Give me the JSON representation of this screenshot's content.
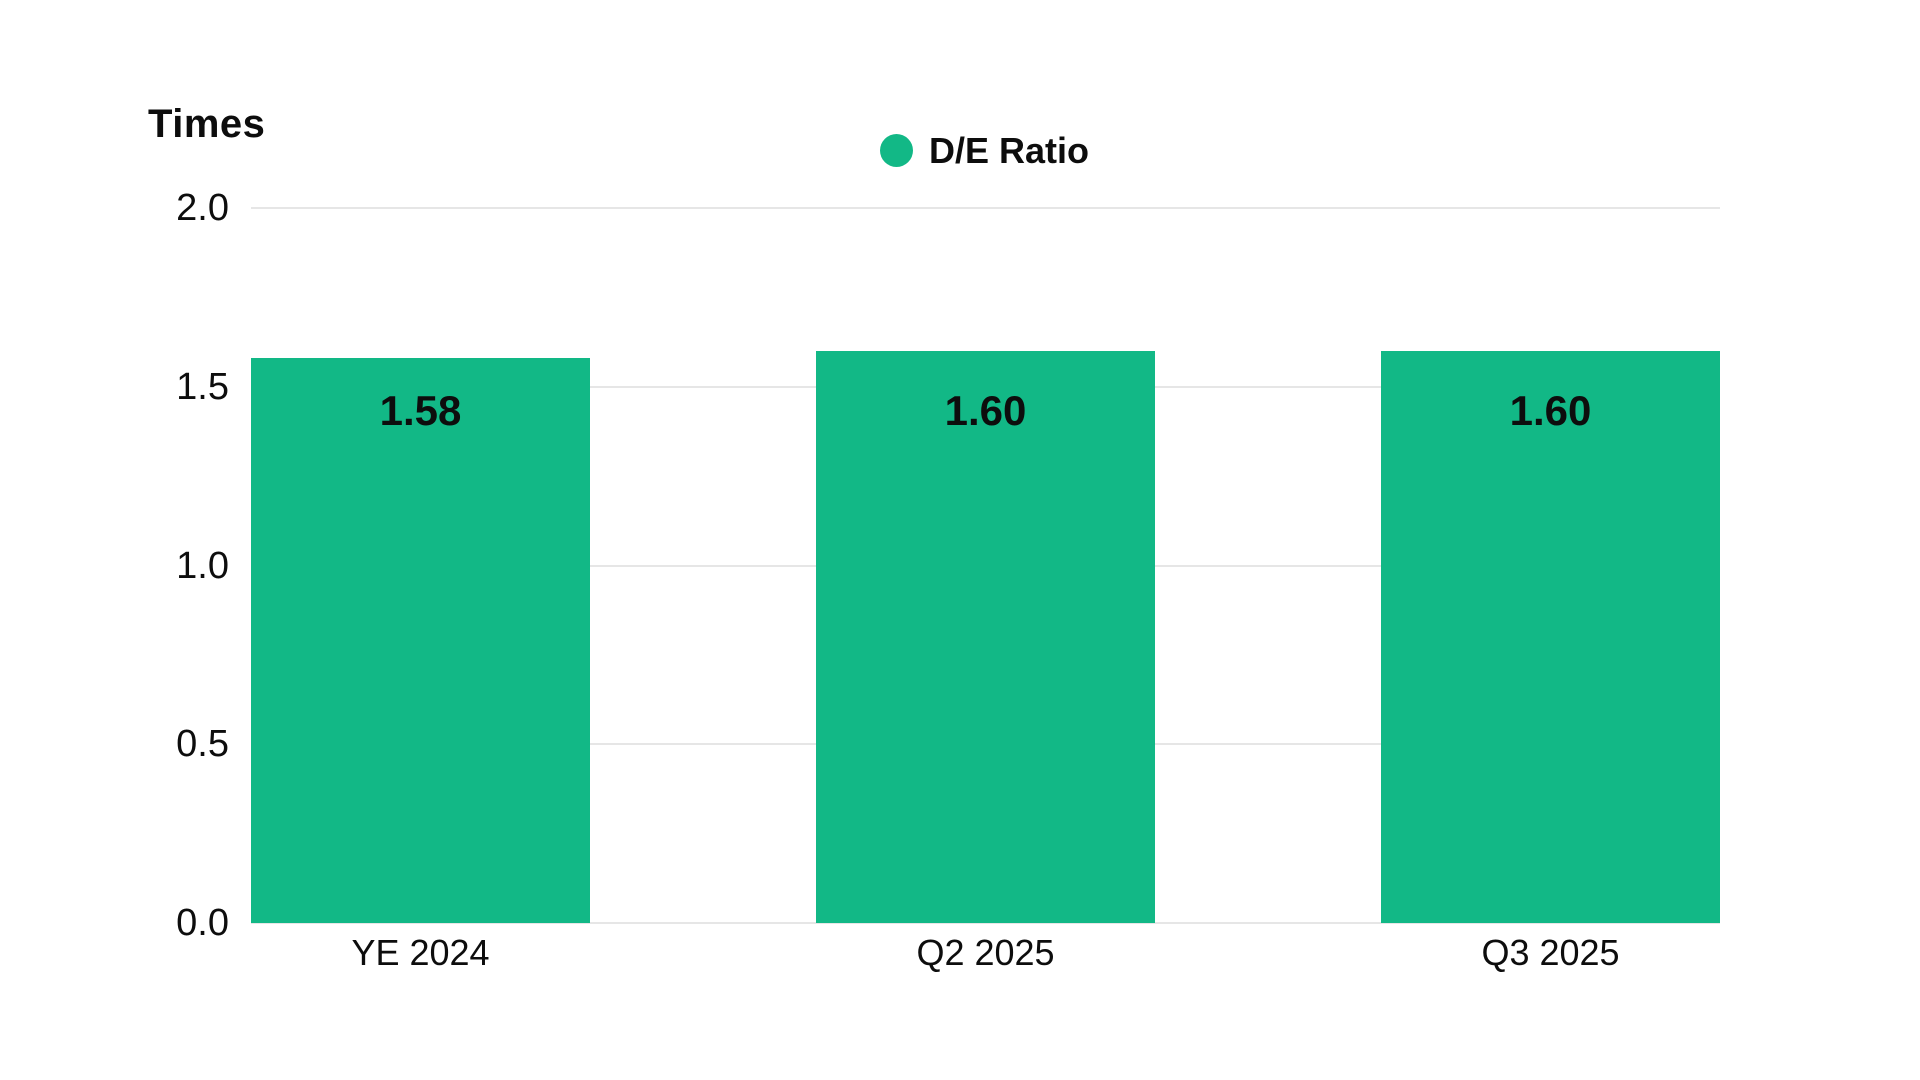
{
  "page": {
    "background": "#ffffff"
  },
  "axis": {
    "unit_label": "Times"
  },
  "legend": {
    "items": [
      {
        "label": "D/E Ratio",
        "marker": "circle",
        "color": "#12b886"
      }
    ]
  },
  "chart_data": {
    "type": "bar",
    "title": "",
    "unit_label": "Times",
    "categories": [
      "YE 2024",
      "Q2 2025",
      "Q3 2025"
    ],
    "series": [
      {
        "name": "D/E Ratio",
        "color": "#12b886",
        "values": [
          1.58,
          1.6,
          1.6
        ]
      }
    ],
    "value_labels": [
      "1.58",
      "1.60",
      "1.60"
    ],
    "ylim": [
      0.0,
      2.0
    ],
    "y_ticks": [
      {
        "value": 2.0,
        "label": "2.0"
      },
      {
        "value": 1.5,
        "label": "1.5"
      },
      {
        "value": 1.0,
        "label": "1.0"
      },
      {
        "value": 0.5,
        "label": "0.5"
      },
      {
        "value": 0.0,
        "label": "0.0"
      }
    ],
    "grid": true,
    "legend_position": "top-center",
    "colors": {
      "bar": "#12b886",
      "gridline": "#e6e6e6",
      "text": "#0d0d0d",
      "value_label": "#0d0d0d"
    }
  }
}
